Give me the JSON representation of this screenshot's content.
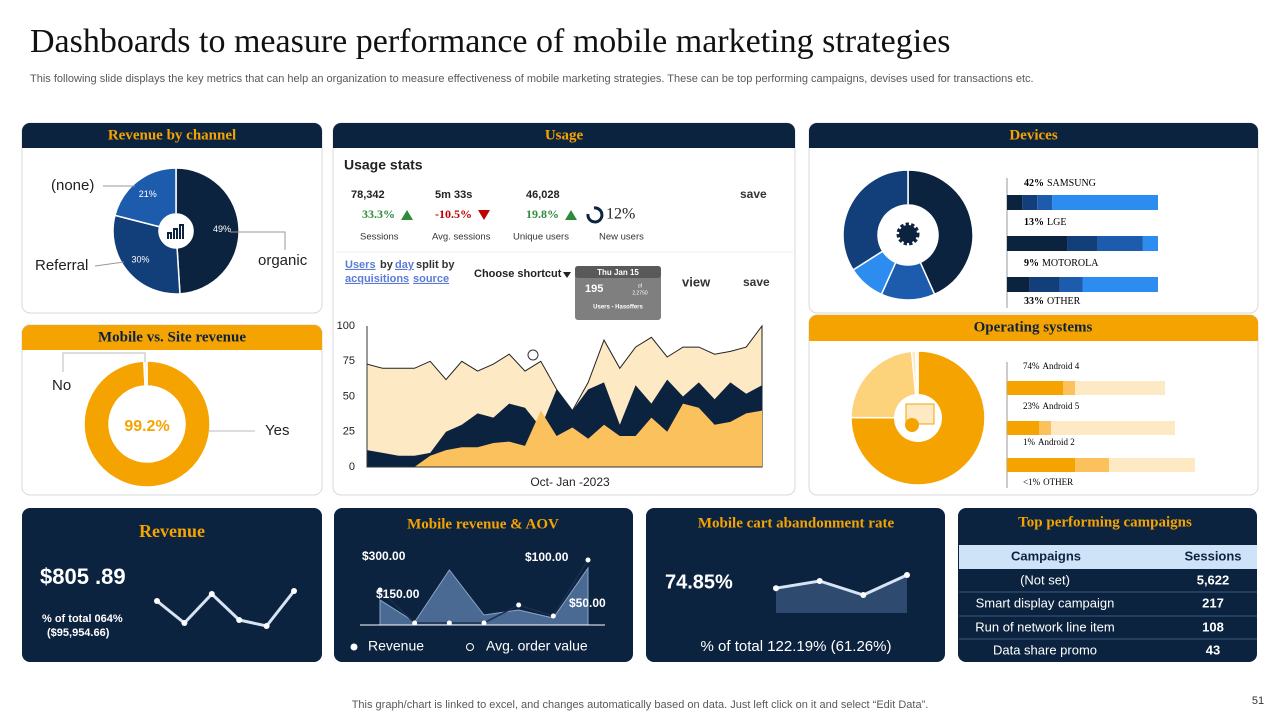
{
  "title": "Dashboards to measure performance of mobile marketing strategies",
  "subtitle": "This following slide displays the key metrics that can help an organization to measure effectiveness of mobile marketing strategies. These can be top performing campaigns, devises used for transactions etc.",
  "revenue_by_channel": {
    "type": "pie",
    "title": "Revenue by channel",
    "categories": [
      "organic",
      "Referral",
      "(none)"
    ],
    "values": [
      49,
      30,
      21
    ],
    "value_labels": [
      "49%",
      "30%",
      "21%"
    ],
    "colors": [
      "#0c2340",
      "#123e7a",
      "#1d5cad"
    ]
  },
  "mobile_vs_site": {
    "type": "pie",
    "title": "Mobile vs. Site revenue",
    "categories": [
      "Yes",
      "No"
    ],
    "values": [
      99.2,
      0.8
    ],
    "value_labels": [
      "99.2%",
      null
    ],
    "colors": [
      "#f5a300",
      "#f2f2f2"
    ]
  },
  "usage": {
    "title": "Usage",
    "stats_title": "Usage stats",
    "stats": [
      {
        "value": "78,342",
        "change": "33.3%",
        "trend": "up",
        "label": "Sessions"
      },
      {
        "value": "5m 33s",
        "change": "-10.5%",
        "trend": "down",
        "label": "Avg. sessions"
      },
      {
        "value": "46,028",
        "change": "19.8%",
        "trend": "up",
        "label": "Unique users"
      }
    ],
    "new_users": {
      "value": "12%",
      "label": "New users"
    },
    "save": "save",
    "split_text": [
      "Users",
      "by",
      "day",
      "split by",
      "acquisitions",
      "source"
    ],
    "shortcut": "Choose shortcut",
    "tooltip": {
      "date": "Thu Jan 15",
      "value": "195",
      "of": "of",
      "of_total": "2,2750",
      "source": "Users - Hasoffers"
    },
    "view": "view",
    "save_2": "save",
    "chart": {
      "type": "area",
      "xlabel": "Oct- Jan -2023",
      "ylim": [
        0,
        100
      ],
      "yticks": [
        0,
        25,
        50,
        75,
        100
      ],
      "series": [
        {
          "color": "#fde9c4",
          "values": [
            73,
            70,
            70,
            70,
            75,
            62,
            75,
            68,
            73,
            80,
            68,
            75,
            55,
            40,
            60,
            90,
            70,
            85,
            92,
            78,
            85,
            85,
            80,
            82,
            85,
            100
          ]
        },
        {
          "color": "#0c2340",
          "values": [
            12,
            10,
            8,
            8,
            10,
            25,
            30,
            38,
            35,
            45,
            42,
            28,
            55,
            40,
            55,
            60,
            30,
            58,
            45,
            62,
            50,
            60,
            48,
            60,
            52,
            58
          ]
        },
        {
          "color": "#fbc15c",
          "values": [
            0,
            0,
            0,
            0,
            8,
            12,
            14,
            14,
            17,
            18,
            15,
            40,
            22,
            28,
            20,
            30,
            22,
            22,
            35,
            25,
            45,
            42,
            30,
            32,
            38,
            40
          ]
        }
      ]
    }
  },
  "devices": {
    "type": "pie",
    "title": "Devices",
    "categories": [
      "SAMSUNG",
      "LGE",
      "MOTOROLA",
      "OTHER"
    ],
    "values": [
      42,
      13,
      9,
      33
    ],
    "value_labels": [
      "42%",
      "13%",
      "9%",
      "33%"
    ],
    "colors": [
      "#0c2340",
      "#1d5cad",
      "#2d8cf0",
      "#123e7a"
    ]
  },
  "operating_systems": {
    "type": "pie",
    "title": "Operating systems",
    "categories": [
      "Android 4",
      "Android 5",
      "Android 2",
      "OTHER"
    ],
    "values": [
      74,
      23,
      1,
      0.5
    ],
    "value_labels": [
      "74%",
      "23%",
      "1%",
      "<1%"
    ],
    "colors": [
      "#f5a300",
      "#fcd27a",
      "#fde9c4",
      "#fff3dc"
    ]
  },
  "revenue": {
    "type": "line",
    "title": "Revenue",
    "value": "$805 .89",
    "share": "% of total 064%",
    "total": "($95,954.66)",
    "values": [
      58,
      14,
      72,
      20,
      8,
      78
    ],
    "color": "#ffffff"
  },
  "mobile_revenue": {
    "type": "area",
    "title": "Mobile revenue & AOV",
    "annotations": [
      "$300.00",
      "$150.00",
      "$100.00",
      "$50.00"
    ],
    "series": [
      {
        "name": "Revenue",
        "color": "#4a6a94",
        "values": [
          125,
          15,
          275,
          50,
          75,
          35,
          285
        ]
      },
      {
        "name": "Avg. order value",
        "color": "#ffffff",
        "values": [
          175,
          10,
          10,
          10,
          100,
          45,
          325
        ]
      }
    ]
  },
  "cart_abandonment": {
    "type": "line",
    "title": "Mobile cart abandonment rate",
    "value": "74.85%",
    "share": "% of total 122.19% (61.26%)",
    "values": [
      62,
      80,
      45,
      95
    ],
    "color": "#ffffff"
  },
  "campaigns": {
    "title": "Top performing campaigns",
    "columns": [
      "Campaigns",
      "Sessions"
    ],
    "rows": [
      [
        "(Not set)",
        "5,622"
      ],
      [
        "Smart display campaign",
        "217"
      ],
      [
        "Run of network line item",
        "108"
      ],
      [
        "Data share promo",
        "43"
      ]
    ]
  },
  "footer": "This graph/chart is linked to excel, and changes automatically based on data. Just left click on it and select “Edit Data”.",
  "page_number": "51"
}
